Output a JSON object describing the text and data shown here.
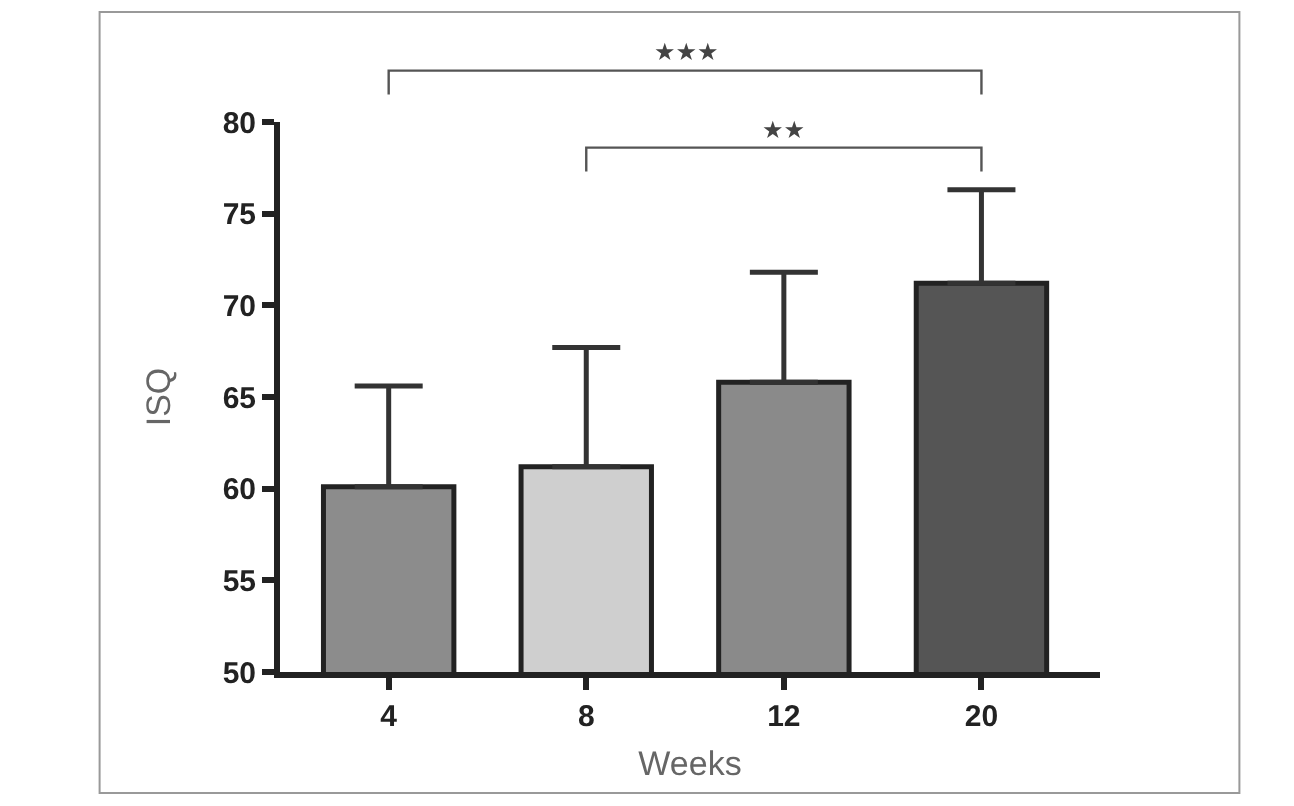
{
  "chart_data": {
    "type": "bar",
    "xlabel": "Weeks",
    "ylabel": "ISQ",
    "categories": [
      "4",
      "8",
      "12",
      "20"
    ],
    "values": [
      60.1,
      61.2,
      65.8,
      71.2
    ],
    "colors": [
      "#8c8c8c",
      "#cfcfcf",
      "#8a8a8a",
      "#555555"
    ],
    "errors": [
      [
        60.1,
        65.6
      ],
      [
        61.2,
        67.7
      ],
      [
        65.8,
        71.8
      ],
      [
        71.2,
        76.3
      ]
    ],
    "ylim": [
      50,
      80
    ],
    "yticks": [
      50,
      55,
      60,
      65,
      70,
      75,
      80
    ],
    "annotations": [
      "★★★",
      "★★"
    ],
    "data_labels": false
  }
}
